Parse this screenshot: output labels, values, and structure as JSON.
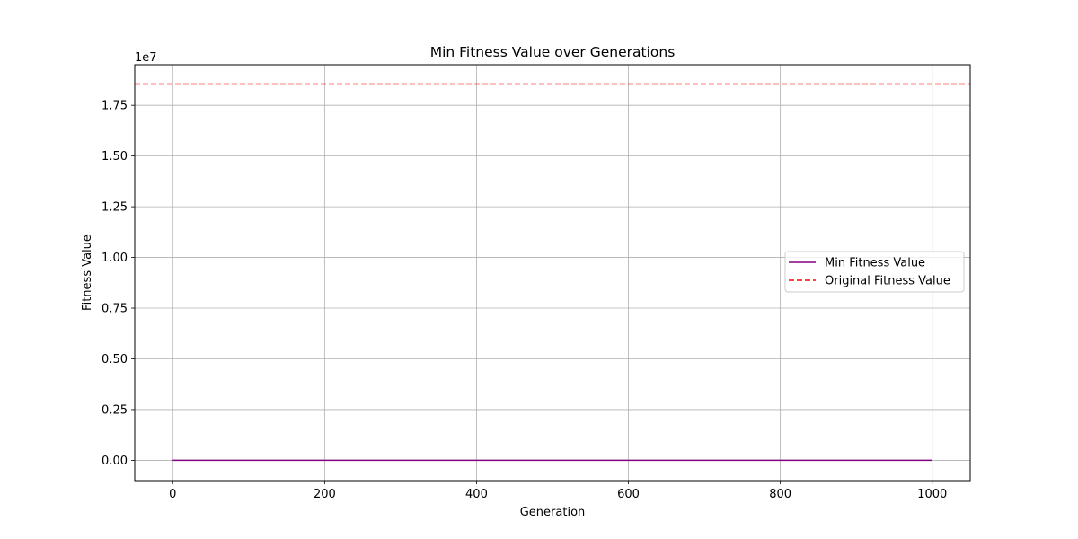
{
  "chart_data": {
    "type": "line",
    "title": "Min Fitness Value over Generations",
    "xlabel": "Generation",
    "ylabel": "Fitness Value",
    "y_offset_label": "1e7",
    "xlim": [
      -50,
      1050
    ],
    "ylim": [
      -1000000,
      19500000
    ],
    "x_ticks": [
      0,
      200,
      400,
      600,
      800,
      1000
    ],
    "x_tick_labels": [
      "0",
      "200",
      "400",
      "600",
      "800",
      "1000"
    ],
    "y_ticks": [
      0,
      2500000,
      5000000,
      7500000,
      10000000,
      12500000,
      15000000,
      17500000
    ],
    "y_tick_labels": [
      "0.00",
      "0.25",
      "0.50",
      "0.75",
      "1.00",
      "1.25",
      "1.50",
      "1.75"
    ],
    "grid": true,
    "legend_position": "center-right",
    "series": [
      {
        "name": "Min Fitness Value",
        "style": "solid",
        "color": "#800080",
        "x": [
          0,
          1000
        ],
        "y": [
          0,
          0
        ]
      },
      {
        "name": "Original Fitness Value",
        "style": "dashed-horizontal",
        "color": "#ff0000",
        "y": 18550000
      }
    ]
  }
}
